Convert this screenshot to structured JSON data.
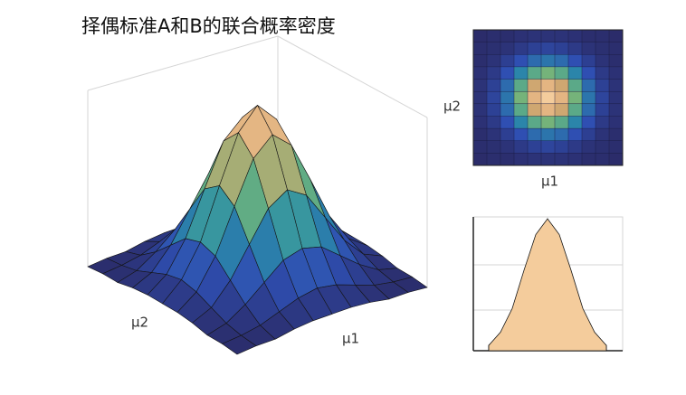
{
  "chart_data": [
    {
      "type": "surface",
      "title": "择偶标准A和B的联合概率密度",
      "xlabel": "μ1",
      "ylabel": "μ2",
      "colormap": [
        "#2b2c6a",
        "#2f4fb2",
        "#2a8ea8",
        "#70b47a",
        "#d9a670",
        "#f4cc9c"
      ],
      "edgecolor": "#151515",
      "z": [
        [
          0.0,
          0.01,
          0.01,
          0.03,
          0.04,
          0.04,
          0.04,
          0.03,
          0.01,
          0.01,
          0.0
        ],
        [
          0.01,
          0.02,
          0.04,
          0.08,
          0.12,
          0.14,
          0.12,
          0.08,
          0.04,
          0.02,
          0.01
        ],
        [
          0.01,
          0.04,
          0.11,
          0.2,
          0.29,
          0.32,
          0.29,
          0.2,
          0.11,
          0.04,
          0.01
        ],
        [
          0.03,
          0.08,
          0.2,
          0.37,
          0.54,
          0.61,
          0.54,
          0.37,
          0.2,
          0.08,
          0.03
        ],
        [
          0.04,
          0.12,
          0.29,
          0.54,
          0.78,
          0.88,
          0.78,
          0.54,
          0.29,
          0.12,
          0.04
        ],
        [
          0.04,
          0.14,
          0.32,
          0.61,
          0.88,
          1.0,
          0.88,
          0.61,
          0.32,
          0.14,
          0.04
        ],
        [
          0.04,
          0.12,
          0.29,
          0.54,
          0.78,
          0.88,
          0.78,
          0.54,
          0.29,
          0.12,
          0.04
        ],
        [
          0.03,
          0.08,
          0.2,
          0.37,
          0.54,
          0.61,
          0.54,
          0.37,
          0.2,
          0.08,
          0.03
        ],
        [
          0.01,
          0.04,
          0.11,
          0.2,
          0.29,
          0.32,
          0.29,
          0.2,
          0.11,
          0.04,
          0.01
        ],
        [
          0.01,
          0.02,
          0.04,
          0.08,
          0.12,
          0.14,
          0.12,
          0.08,
          0.04,
          0.02,
          0.01
        ],
        [
          0.0,
          0.01,
          0.01,
          0.03,
          0.04,
          0.04,
          0.04,
          0.03,
          0.01,
          0.01,
          0.0
        ]
      ]
    },
    {
      "type": "heatmap",
      "xlabel": "μ1",
      "ylabel": "μ2"
    },
    {
      "type": "profile"
    }
  ]
}
